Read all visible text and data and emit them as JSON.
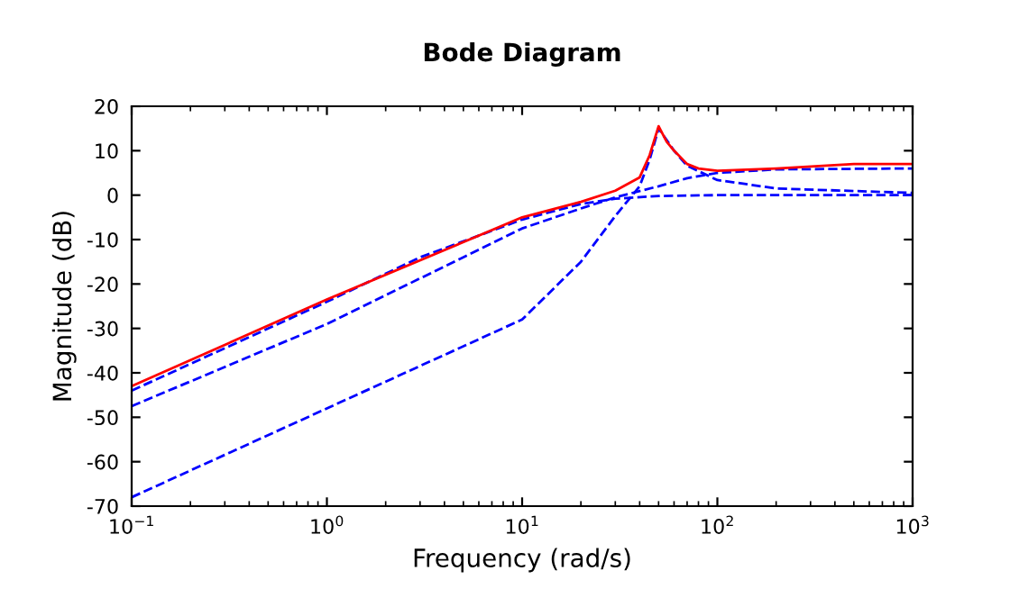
{
  "chart_data": {
    "type": "line",
    "title": "Bode Diagram",
    "xlabel": "Frequency (rad/s)",
    "ylabel": "Magnitude (dB)",
    "log": "x",
    "xlim": [
      0.1,
      1000
    ],
    "xticks": [
      {
        "value": 0.1,
        "label": "10$^{−1}$"
      },
      {
        "value": 1,
        "label": "10$^{0}$"
      },
      {
        "value": 10,
        "label": "10$^{1}$"
      },
      {
        "value": 100,
        "label": "10$^{2}$"
      },
      {
        "value": 1000,
        "label": "10$^{3}$"
      }
    ],
    "ylim": [
      -70,
      20
    ],
    "yticks": [
      -70,
      -60,
      -50,
      -40,
      -30,
      -20,
      -10,
      0,
      10,
      20
    ],
    "grid": false,
    "series": [
      {
        "color": "#0000ff",
        "line_style": "dashed",
        "x": [
          0.1,
          1,
          3,
          10,
          20,
          30,
          50,
          100,
          1000
        ],
        "values": [
          -44,
          -24,
          -14,
          -5.5,
          -2,
          -0.8,
          -0.2,
          0,
          0
        ]
      },
      {
        "color": "#0000ff",
        "line_style": "dashed",
        "x": [
          0.1,
          1,
          10,
          20,
          30,
          50,
          70,
          100,
          200,
          1000
        ],
        "values": [
          -47.5,
          -29,
          -7.5,
          -3,
          -0.5,
          2,
          3.8,
          5,
          5.8,
          6
        ]
      },
      {
        "color": "#0000ff",
        "line_style": "dashed",
        "x": [
          0.1,
          1,
          10,
          20,
          30,
          40,
          45,
          50,
          60,
          70,
          100,
          200,
          1000
        ],
        "values": [
          -68,
          -48,
          -28,
          -15,
          -4.7,
          2,
          8,
          15,
          10,
          6.6,
          3.4,
          1.5,
          0.5
        ]
      },
      {
        "color": "#ff0000",
        "line_style": "solid",
        "x": [
          0.1,
          1,
          10,
          20,
          30,
          40,
          45,
          50,
          55,
          60,
          70,
          80,
          100,
          200,
          500,
          1000
        ],
        "values": [
          -43,
          -23.5,
          -5,
          -1.5,
          1,
          4,
          9,
          15.5,
          12,
          10,
          7,
          6,
          5.5,
          6,
          7,
          7
        ]
      }
    ]
  }
}
